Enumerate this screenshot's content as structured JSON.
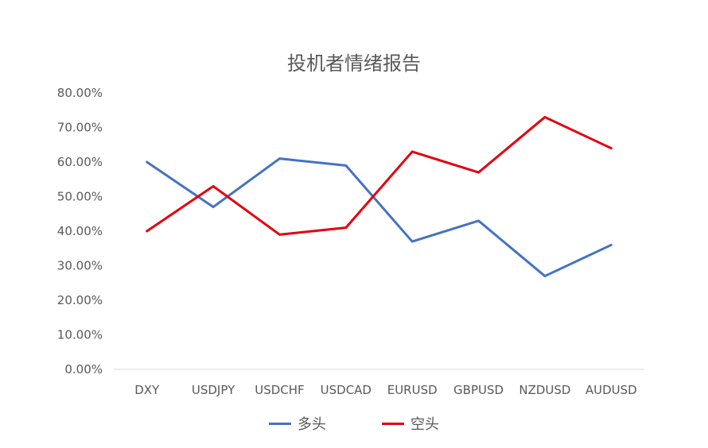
{
  "chart_data": {
    "type": "line",
    "title": "投机者情绪报告",
    "categories": [
      "DXY",
      "USDJPY",
      "USDCHF",
      "USDCAD",
      "EURUSD",
      "GBPUSD",
      "NZDUSD",
      "AUDUSD"
    ],
    "series": [
      {
        "name": "多头",
        "color": "#4472C4",
        "values": [
          0.6,
          0.47,
          0.61,
          0.59,
          0.37,
          0.43,
          0.27,
          0.36
        ]
      },
      {
        "name": "空头",
        "color": "#E3000F",
        "values": [
          0.4,
          0.53,
          0.39,
          0.41,
          0.63,
          0.57,
          0.73,
          0.64
        ]
      }
    ],
    "ylim": [
      0,
      0.8
    ],
    "yticks": [
      "0.00%",
      "10.00%",
      "20.00%",
      "30.00%",
      "40.00%",
      "50.00%",
      "60.00%",
      "70.00%",
      "80.00%"
    ],
    "grid": false,
    "legend_position": "bottom"
  }
}
